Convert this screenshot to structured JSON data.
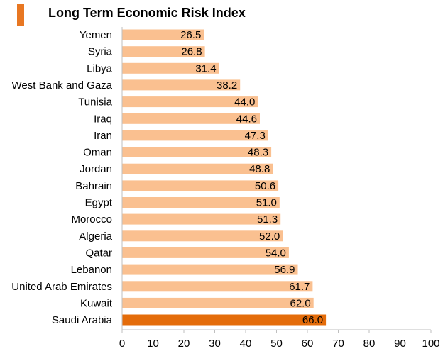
{
  "chart_data": {
    "type": "bar",
    "orientation": "horizontal",
    "title": "Long Term Economic Risk Index",
    "categories": [
      "Yemen",
      "Syria",
      "Libya",
      "West Bank and Gaza",
      "Tunisia",
      "Iraq",
      "Iran",
      "Oman",
      "Jordan",
      "Bahrain",
      "Egypt",
      "Morocco",
      "Algeria",
      "Qatar",
      "Lebanon",
      "United Arab Emirates",
      "Kuwait",
      "Saudi Arabia"
    ],
    "values": [
      26.5,
      26.8,
      31.4,
      38.2,
      44.0,
      44.6,
      47.3,
      48.3,
      48.8,
      50.6,
      51.0,
      51.3,
      52.0,
      54.0,
      56.9,
      61.7,
      62.0,
      66.0
    ],
    "value_labels": [
      "26.5",
      "26.8",
      "31.4",
      "38.2",
      "44.0",
      "44.6",
      "47.3",
      "48.3",
      "48.8",
      "50.6",
      "51.0",
      "51.3",
      "52.0",
      "54.0",
      "56.9",
      "61.7",
      "62.0",
      "66.0"
    ],
    "highlight": "Saudi Arabia",
    "xlim": [
      0,
      100
    ],
    "xticks": [
      "0",
      "10",
      "20",
      "30",
      "40",
      "50",
      "60",
      "70",
      "80",
      "90",
      "100"
    ],
    "xlabel": "",
    "ylabel": "",
    "grid": false,
    "colors": {
      "bar": "#fac090",
      "highlight": "#e46c0a",
      "accent": "#e87722",
      "axis": "#bfbfbf"
    }
  }
}
